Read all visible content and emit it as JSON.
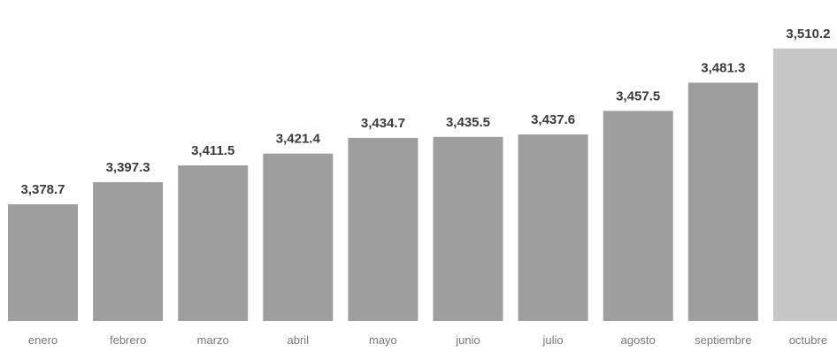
{
  "chart_data": {
    "type": "bar",
    "title": "",
    "xlabel": "",
    "ylabel": "",
    "categories": [
      "enero",
      "febrero",
      "marzo",
      "abril",
      "mayo",
      "junio",
      "julio",
      "agosto",
      "septiembre",
      "octubre"
    ],
    "values": [
      3378.7,
      3397.3,
      3411.5,
      3421.4,
      3434.7,
      3435.5,
      3437.6,
      3457.5,
      3481.3,
      3510.2
    ],
    "value_labels": [
      "3,378.7",
      "3,397.3",
      "3,411.5",
      "3,421.4",
      "3,434.7",
      "3,435.5",
      "3,437.6",
      "3,457.5",
      "3,481.3",
      "3,510.2"
    ],
    "ylim": [
      3280,
      3525
    ],
    "grid": false,
    "colors": {
      "bar": "#9e9e9e",
      "bar_highlight": "#c6c6c6",
      "value_label": "#3a3a3a",
      "category_label": "#777777"
    }
  }
}
